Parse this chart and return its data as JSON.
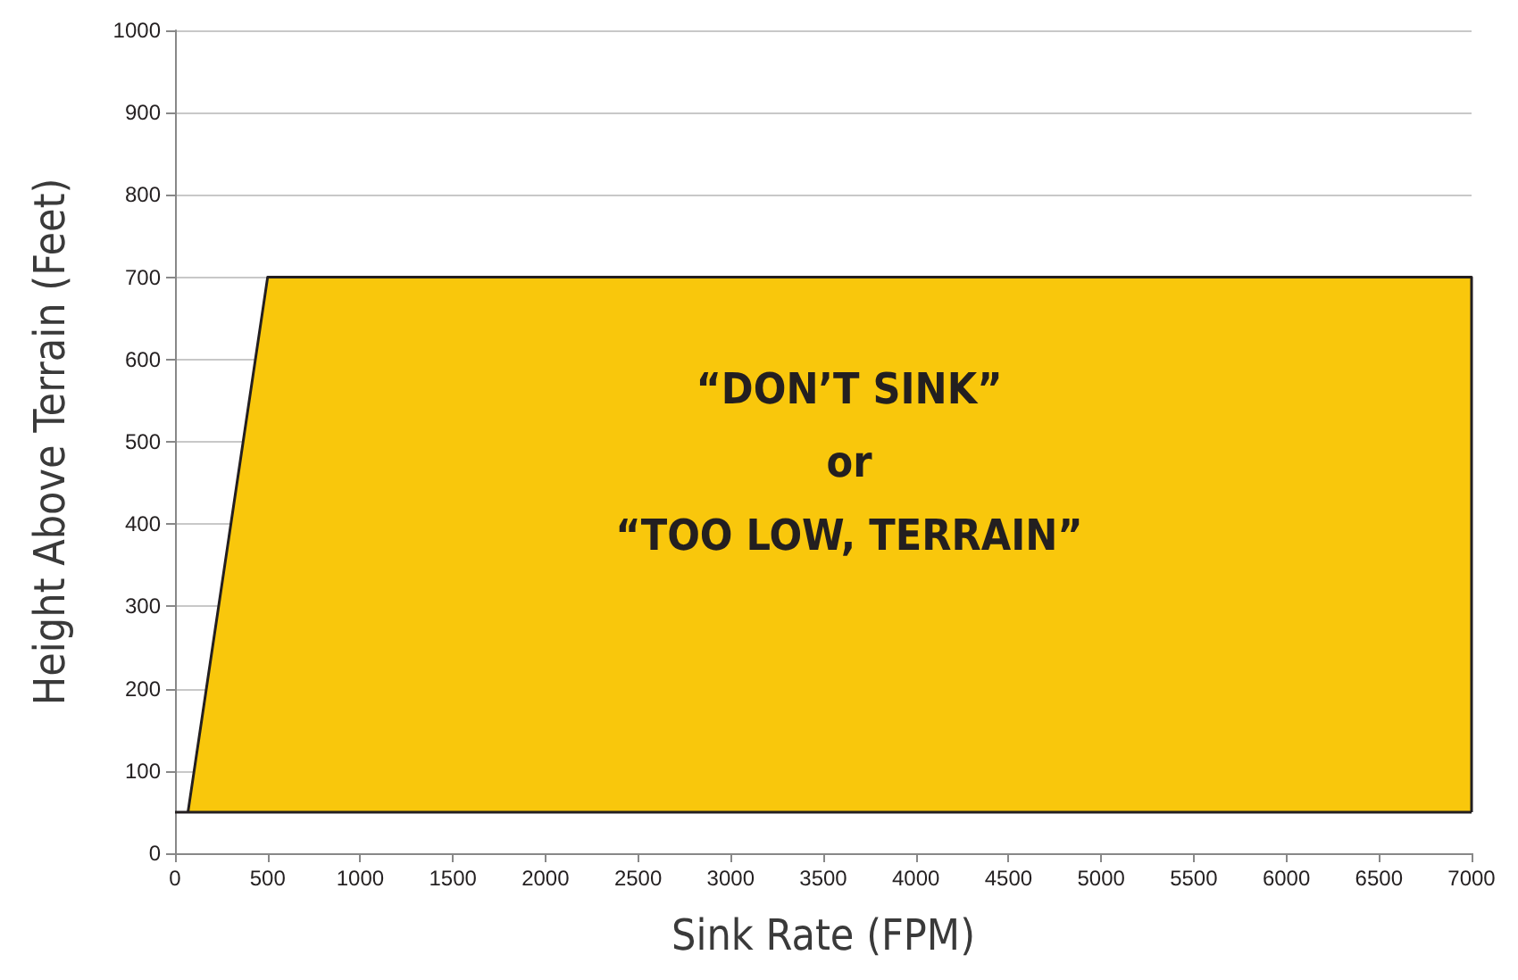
{
  "chart_data": {
    "type": "area",
    "xlabel": "Sink Rate (FPM)",
    "ylabel": "Height Above Terrain (Feet)",
    "series": [
      {
        "x": [
          70,
          500,
          7000,
          7000
        ],
        "values": [
          50,
          700,
          700,
          50
        ],
        "color": "#f9c70c"
      }
    ],
    "xlim": [
      0,
      7000
    ],
    "xticks": [
      0,
      500,
      1000,
      1500,
      2000,
      2500,
      3000,
      3500,
      4000,
      4500,
      5000,
      5500,
      6000,
      6500,
      7000
    ],
    "ylim": [
      0,
      1000
    ],
    "yticks": [
      0,
      100,
      200,
      300,
      400,
      500,
      600,
      700,
      800,
      900,
      1000
    ],
    "ref_lines": [
      {
        "axis": "y",
        "value": 50,
        "color": "#231f20"
      }
    ],
    "annotations": [
      "“DON’T SINK”\nor\n“TOO LOW, TERRAIN”"
    ],
    "grid": "y",
    "marker": "none",
    "line_style": "solid"
  }
}
